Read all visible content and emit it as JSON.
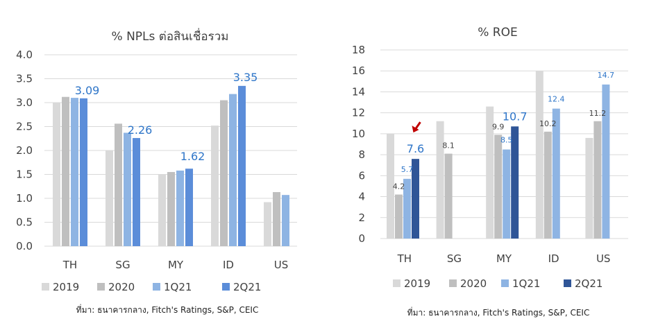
{
  "colors": {
    "2019": "#d9d9d9",
    "2020": "#bfbfbf",
    "1Q21": "#8eb4e3",
    "2Q21_left": "#5b8dd9",
    "2Q21_right": "#2f5597",
    "label_blue": "#2e75c8",
    "label_dark": "#404040",
    "arrow": "#c00000"
  },
  "chart_data": [
    {
      "type": "bar",
      "title": "% NPLs ต่อสินเชื่อรวม",
      "categories": [
        "TH",
        "SG",
        "MY",
        "ID",
        "US"
      ],
      "ylim": [
        0,
        4.0
      ],
      "yticks": [
        "0.0",
        "0.5",
        "1.0",
        "1.5",
        "2.0",
        "2.5",
        "3.0",
        "3.5",
        "4.0"
      ],
      "series": [
        {
          "name": "2019",
          "values": [
            3.0,
            2.0,
            1.5,
            2.52,
            0.92
          ]
        },
        {
          "name": "2020",
          "values": [
            3.12,
            2.56,
            1.55,
            3.05,
            1.13
          ]
        },
        {
          "name": "1Q21",
          "values": [
            3.1,
            2.37,
            1.58,
            3.18,
            1.07
          ]
        },
        {
          "name": "2Q21",
          "values": [
            3.09,
            2.26,
            1.62,
            3.35,
            null
          ]
        }
      ],
      "data_labels": [
        {
          "text": "3.09",
          "category": "TH",
          "series": "2Q21"
        },
        {
          "text": "2.26",
          "category": "SG",
          "series": "2Q21"
        },
        {
          "text": "1.62",
          "category": "MY",
          "series": "2Q21"
        },
        {
          "text": "3.35",
          "category": "ID",
          "series": "2Q21"
        }
      ],
      "legend": [
        "2019",
        "2020",
        "1Q21",
        "2Q21"
      ],
      "legend_position": "bottom",
      "grid": true,
      "source": "ที่มา: ธนาคารกลาง, Fitch's Ratings, S&P, CEIC"
    },
    {
      "type": "bar",
      "title": "% ROE",
      "categories": [
        "TH",
        "SG",
        "MY",
        "ID",
        "US"
      ],
      "ylim": [
        0,
        18
      ],
      "yticks": [
        "0",
        "2",
        "4",
        "6",
        "8",
        "10",
        "12",
        "14",
        "16",
        "18"
      ],
      "series": [
        {
          "name": "2019",
          "values": [
            10.0,
            11.2,
            12.6,
            16.0,
            9.6
          ]
        },
        {
          "name": "2020",
          "values": [
            4.2,
            8.1,
            9.9,
            10.2,
            11.2
          ]
        },
        {
          "name": "1Q21",
          "values": [
            5.7,
            null,
            8.5,
            12.4,
            14.7
          ]
        },
        {
          "name": "2Q21",
          "values": [
            7.6,
            null,
            10.7,
            null,
            null
          ]
        }
      ],
      "data_labels": [
        {
          "text": "4.2",
          "category": "TH",
          "series": "2020"
        },
        {
          "text": "5.7",
          "category": "TH",
          "series": "1Q21"
        },
        {
          "text": "7.6",
          "category": "TH",
          "series": "2Q21"
        },
        {
          "text": "8.1",
          "category": "SG",
          "series": "2020"
        },
        {
          "text": "9.9",
          "category": "MY",
          "series": "2020"
        },
        {
          "text": "8.5",
          "category": "MY",
          "series": "1Q21"
        },
        {
          "text": "10.7",
          "category": "MY",
          "series": "2Q21"
        },
        {
          "text": "10.2",
          "category": "ID",
          "series": "2020"
        },
        {
          "text": "12.4",
          "category": "ID",
          "series": "1Q21"
        },
        {
          "text": "11.2",
          "category": "US",
          "series": "2020"
        },
        {
          "text": "14.7",
          "category": "US",
          "series": "1Q21"
        }
      ],
      "annotation": {
        "type": "arrow",
        "target_category": "TH",
        "target_series": "2Q21"
      },
      "legend": [
        "2019",
        "2020",
        "1Q21",
        "2Q21"
      ],
      "legend_position": "bottom",
      "grid": true,
      "source": "ที่มา: ธนาคารกลาง, Fitch's Ratings, S&P, CEIC"
    }
  ]
}
